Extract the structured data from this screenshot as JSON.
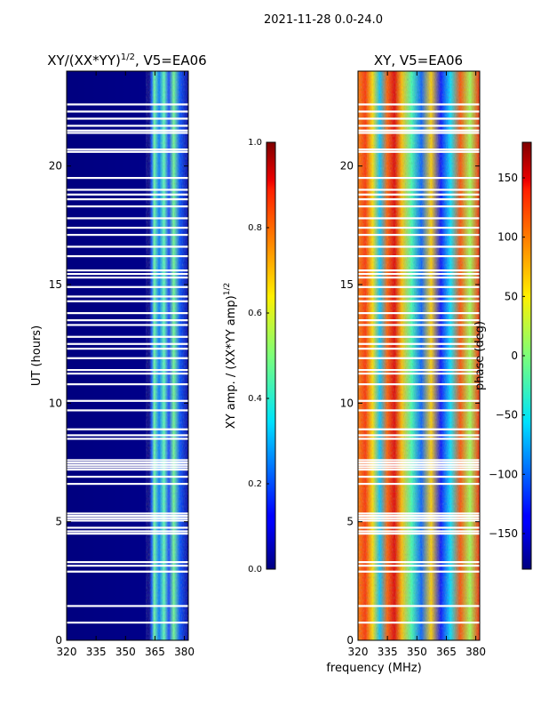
{
  "figure_title": "2021-11-28 0.0-24.0",
  "chart_data": [
    {
      "type": "heatmap",
      "title": "XY/(XX*YY)",
      "title_exp": "1/2",
      "title_suffix": ", V5=EA06",
      "xlabel": "",
      "ylabel": "UT (hours)",
      "xlim": [
        320,
        382
      ],
      "ylim": [
        0,
        24
      ],
      "xticks": [
        320,
        335,
        350,
        365,
        380
      ],
      "yticks": [
        0,
        5,
        10,
        15,
        20
      ],
      "colormap": "jet",
      "colorbar": {
        "label": "XY amp. / (XX*YY amp)",
        "label_exp": "1/2",
        "range": [
          0.0,
          1.0
        ],
        "ticks": [
          "0.0",
          "0.2",
          "0.4",
          "0.6",
          "0.8",
          "1.0"
        ]
      },
      "bright_band_mhz": [
        363,
        380
      ]
    },
    {
      "type": "heatmap",
      "title": "XY, V5=EA06",
      "xlabel": "frequency (MHz)",
      "ylabel": "",
      "xlim": [
        320,
        382
      ],
      "ylim": [
        0,
        24
      ],
      "xticks": [
        320,
        335,
        350,
        365,
        380
      ],
      "yticks": [
        0,
        5,
        10,
        15,
        20
      ],
      "colormap": "jet",
      "colorbar": {
        "label": "phase (deg)",
        "range": [
          -180,
          180
        ],
        "ticks": [
          "150",
          "100",
          "50",
          "0",
          "−50",
          "−100",
          "−150"
        ],
        "tick_values": [
          150,
          100,
          50,
          0,
          -50,
          -100,
          -150
        ]
      }
    }
  ],
  "flagged_ut_hours": [
    0.75,
    1.45,
    2.9,
    3.15,
    3.3,
    4.5,
    4.6,
    4.75,
    5.05,
    5.15,
    5.25,
    5.35,
    6.6,
    6.9,
    7.2,
    7.3,
    7.4,
    7.5,
    7.6,
    8.5,
    8.65,
    8.9,
    9.7,
    10.1,
    10.8,
    11.25,
    11.4,
    11.9,
    12.3,
    12.5,
    12.8,
    13.3,
    13.5,
    13.8,
    14.3,
    14.5,
    14.9,
    15.3,
    15.45,
    15.6,
    16.2,
    16.6,
    17.1,
    17.4,
    17.8,
    18.3,
    18.6,
    18.8,
    19.0,
    19.5,
    20.6,
    20.7,
    21.4,
    21.5,
    21.7,
    22.0,
    22.3,
    22.6
  ]
}
